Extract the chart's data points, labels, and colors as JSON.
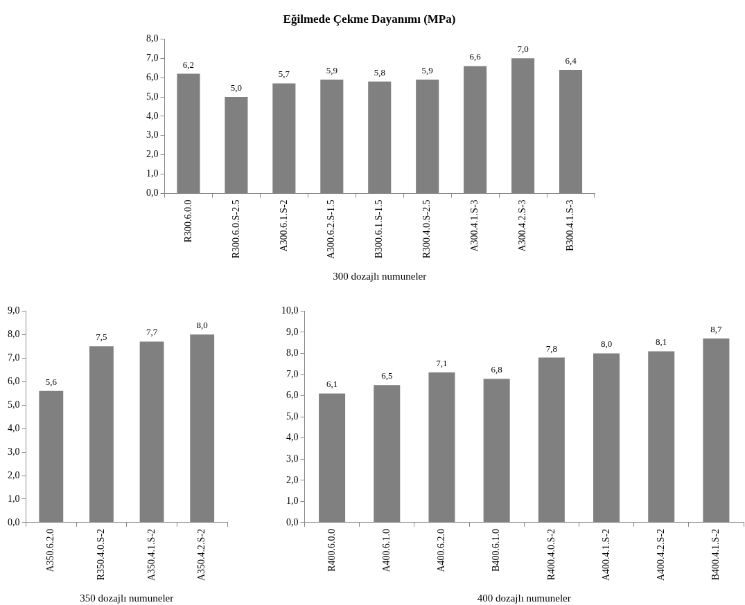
{
  "chart_data": [
    {
      "type": "bar",
      "title": "Eğilmede Çekme Dayanımı (MPa)",
      "xlabel": "300 dozajlı numuneler",
      "categories": [
        "R300.6.0.0",
        "R300.6.0.S-2.5",
        "A300.6.1.S-2",
        "A300.6.2.S-1.5",
        "B300.6.1.S-1.5",
        "R300.4.0.S-2.5",
        "A300.4.1.S-3",
        "A300.4.2.S-3",
        "B300.4.1.S-3"
      ],
      "values": [
        6.2,
        5.0,
        5.7,
        5.9,
        5.8,
        5.9,
        6.6,
        7.0,
        6.4
      ],
      "value_labels": [
        "6,2",
        "5,0",
        "5,7",
        "5,9",
        "5,8",
        "5,9",
        "6,6",
        "7,0",
        "6,4"
      ],
      "color": "#808080",
      "ylim": [
        0,
        8
      ],
      "yticks": [
        {
          "value": 0,
          "label": "0,0"
        },
        {
          "value": 1,
          "label": "1,0"
        },
        {
          "value": 2,
          "label": "2,0"
        },
        {
          "value": 3,
          "label": "3,0"
        },
        {
          "value": 4,
          "label": "4,0"
        },
        {
          "value": 5,
          "label": "5,0"
        },
        {
          "value": 6,
          "label": "6,0"
        },
        {
          "value": 7,
          "label": "7,0"
        },
        {
          "value": 8,
          "label": "8,0"
        }
      ],
      "grid": false,
      "legend": false
    },
    {
      "type": "bar",
      "xlabel": "350 dozajlı numuneler",
      "categories": [
        "A350.6.2.0",
        "R350.4.0.S-2",
        "A350.4.1.S-2",
        "A350.4.2.S-2"
      ],
      "values": [
        5.6,
        7.5,
        7.7,
        8.0
      ],
      "value_labels": [
        "5,6",
        "7,5",
        "7,7",
        "8,0"
      ],
      "color": "#808080",
      "ylim": [
        0,
        9
      ],
      "yticks": [
        {
          "value": 0,
          "label": "0,0"
        },
        {
          "value": 1,
          "label": "1,0"
        },
        {
          "value": 2,
          "label": "2,0"
        },
        {
          "value": 3,
          "label": "3,0"
        },
        {
          "value": 4,
          "label": "4,0"
        },
        {
          "value": 5,
          "label": "5,0"
        },
        {
          "value": 6,
          "label": "6,0"
        },
        {
          "value": 7,
          "label": "7,0"
        },
        {
          "value": 8,
          "label": "8,0"
        },
        {
          "value": 9,
          "label": "9,0"
        }
      ],
      "grid": false,
      "legend": false
    },
    {
      "type": "bar",
      "xlabel": "400 dozajlı numuneler",
      "categories": [
        "R400.6.0.0",
        "A400.6.1.0",
        "A400.6.2.0",
        "B400.6.1.0",
        "R400.4.0.S-2",
        "A400.4.1.S-2",
        "A400.4.2.S-2",
        "B400.4.1.S-2"
      ],
      "values": [
        6.1,
        6.5,
        7.1,
        6.8,
        7.8,
        8.0,
        8.1,
        8.7
      ],
      "value_labels": [
        "6,1",
        "6,5",
        "7,1",
        "6,8",
        "7,8",
        "8,0",
        "8,1",
        "8,7"
      ],
      "color": "#808080",
      "ylim": [
        0,
        10
      ],
      "yticks": [
        {
          "value": 0,
          "label": "0,0"
        },
        {
          "value": 1,
          "label": "1,0"
        },
        {
          "value": 2,
          "label": "2,0"
        },
        {
          "value": 3,
          "label": "3,0"
        },
        {
          "value": 4,
          "label": "4,0"
        },
        {
          "value": 5,
          "label": "5,0"
        },
        {
          "value": 6,
          "label": "6,0"
        },
        {
          "value": 7,
          "label": "7,0"
        },
        {
          "value": 8,
          "label": "8,0"
        },
        {
          "value": 9,
          "label": "9,0"
        },
        {
          "value": 10,
          "label": "10,0"
        }
      ],
      "grid": false,
      "legend": false
    }
  ]
}
